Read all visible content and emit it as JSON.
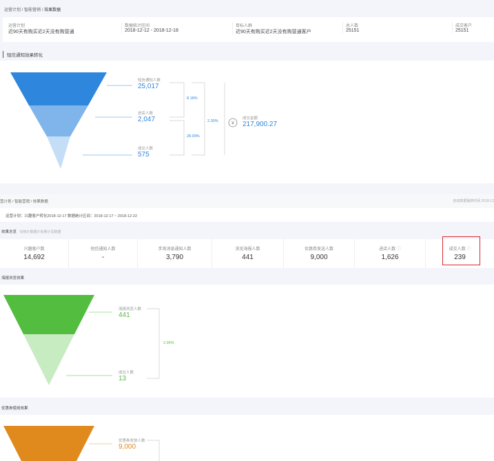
{
  "top": {
    "breadcrumb": [
      "运营计划",
      "智能营销",
      "效果数据"
    ],
    "info": [
      {
        "label": "运营计划",
        "value": "近90天有购买近2天没有购营通"
      },
      {
        "label": "数据统计区间",
        "value": "2018-12-12 - 2018-12-18"
      },
      {
        "label": "目标人群",
        "value": "近90天有购买近2天没有购营通客户"
      },
      {
        "label": "总人数",
        "value": "25151"
      },
      {
        "label": "成交客户",
        "value": "25151"
      }
    ],
    "section_title": "短信通知效果转化",
    "funnel": {
      "color": "#2f86dd",
      "steps": [
        {
          "label": "短信通知人数",
          "value": "25,017"
        },
        {
          "label": "进店人数",
          "value": "2,047"
        },
        {
          "label": "成交人数",
          "value": "575"
        }
      ],
      "rates": [
        "8.18%",
        "28.09%",
        "2.30%"
      ],
      "amount_label": "成交金额",
      "amount": "217,900.27",
      "currency_icon": "yen-icon"
    }
  },
  "bottom": {
    "breadcrumb": [
      "营计划",
      "智能营销",
      "效果数据"
    ],
    "updated": "自动数据最新时间 2018-12",
    "plan": "运营计划：兴趣客户转化2018-12-17",
    "range": "数据统计区间：2018-12-17 ~ 2018-12-22",
    "overview_title": "效果总览",
    "overview_hint": "仅统计数据计划累计及数据",
    "stats": [
      {
        "label": "兴趣客户数",
        "value": "14,692"
      },
      {
        "label": "短信通知人数",
        "value": "-"
      },
      {
        "label": "手淘消息通知人数",
        "value": "3,790"
      },
      {
        "label": "浏览海报人数",
        "value": "441"
      },
      {
        "label": "优惠券发送人数",
        "value": "9,000"
      },
      {
        "label": "进店人数",
        "value": "1,626",
        "help": true
      },
      {
        "label": "成交人数",
        "value": "239",
        "help": true,
        "highlighted": true
      }
    ],
    "poster": {
      "title": "海报浏览效果",
      "color": "#52bd3f",
      "steps": [
        {
          "label": "海报浏览人数",
          "value": "441"
        },
        {
          "label": "成交人数",
          "value": "13"
        }
      ],
      "rate": "2.95%"
    },
    "coupon": {
      "title": "优惠券使用效果",
      "color": "#e08a1e",
      "steps": [
        {
          "label": "优惠券发放人数",
          "value": "9,000"
        }
      ]
    }
  }
}
